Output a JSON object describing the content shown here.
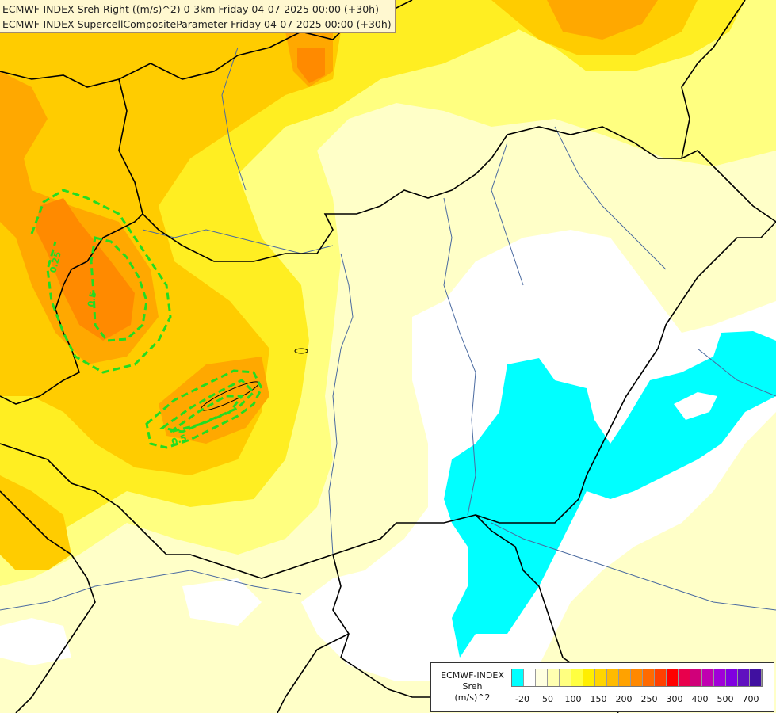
{
  "titles": {
    "line1": "ECMWF-INDEX Sreh Right ((m/s)^2) 0-3km Friday 04-07-2025 00:00 (+30h)",
    "line2": "ECMWF-INDEX SupercellCompositeParameter Friday 04-07-2025 00:00 (+30h)"
  },
  "contour_labels": {
    "scp_a": "0.25",
    "scp_b": "0.5",
    "scp_c": "0.5"
  },
  "legend": {
    "title_line1": "ECMWF-INDEX",
    "title_line2": "Sreh",
    "title_line3": "(m/s)^2",
    "ticks": [
      "-20",
      "50",
      "100",
      "150",
      "200",
      "250",
      "300",
      "400",
      "500",
      "700"
    ],
    "swatch_colors": [
      "#00ffff",
      "#ffffff",
      "#ffffe0",
      "#ffffb0",
      "#ffff80",
      "#ffff40",
      "#ffee00",
      "#ffd500",
      "#ffbb00",
      "#ffa200",
      "#ff8800",
      "#ff6a00",
      "#ff4000",
      "#ff0000",
      "#e8004c",
      "#d0007a",
      "#c000b0",
      "#a000d8",
      "#8000e0",
      "#6010c0",
      "#4010a0"
    ]
  },
  "colors": {
    "sreh_negative": "#00ffff",
    "scp_contour": "#22dd22",
    "borders": "#000000",
    "rivers": "#4a6aa0"
  }
}
